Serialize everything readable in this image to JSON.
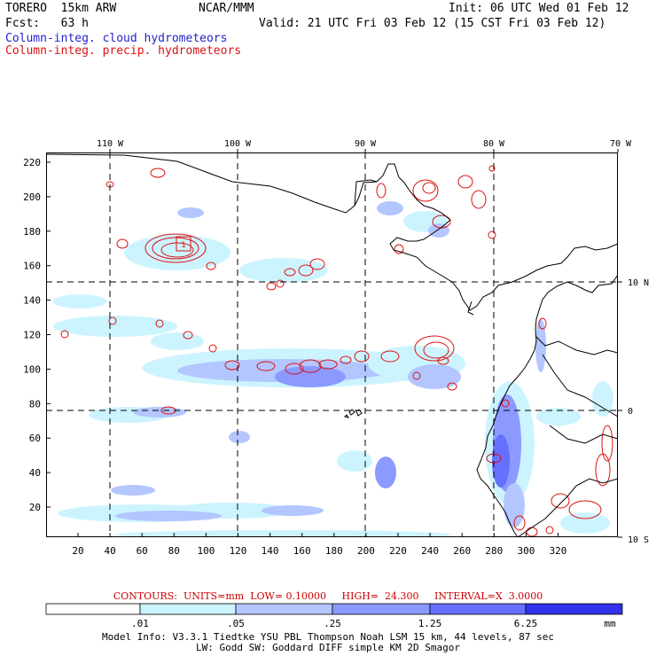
{
  "header": {
    "model": "TORERO  15km ARW",
    "org": "NCAR/MMM",
    "init": "Init: 06 UTC Wed 01 Feb 12",
    "fcst": "Fcst:   63 h",
    "valid": "Valid: 21 UTC Fri 03 Feb 12 (15 CST Fri 03 Feb 12)",
    "field1": "Column-integ. cloud hydrometeors",
    "field2": "Column-integ. precip. hydrometeors"
  },
  "map": {
    "top_lon_labels": [
      "110 W",
      "100 W",
      "90 W",
      "80 W",
      "70 W"
    ],
    "right_lat_labels": [
      "10 N",
      "0",
      "10 S"
    ],
    "x_ticks": [
      "20",
      "40",
      "60",
      "80",
      "100",
      "120",
      "140",
      "160",
      "180",
      "200",
      "220",
      "240",
      "260",
      "280",
      "300",
      "320"
    ],
    "y_ticks": [
      "20",
      "40",
      "60",
      "80",
      "100",
      "120",
      "140",
      "160",
      "180",
      "200",
      "220"
    ],
    "box_label": "1",
    "colors": {
      "cloud_light": "#ccf4ff",
      "cloud_mid": "#99b3ff",
      "cloud_dark": "#6666ff",
      "precip": "#dd1111",
      "coast": "#000000"
    }
  },
  "contour_info": {
    "label": "CONTOURS:",
    "units": "UNITS=mm",
    "low": "LOW= 0.10000",
    "high": "HIGH=  24.300",
    "interval": "INTERVAL=X  3.0000"
  },
  "legend": {
    "labels": [
      ".01",
      ".05",
      ".25",
      "1.25",
      "6.25"
    ],
    "unit": "mm",
    "colors": [
      "#ffffff",
      "#ccf4ff",
      "#b3c6ff",
      "#8c99ff",
      "#6670ff",
      "#3333ee"
    ]
  },
  "footer": {
    "line1": "Model Info: V3.3.1   Tiedtke YSU PBL  Thompson    Noah LSM  15 km,   44 levels,   87 sec",
    "line2": "LW: Godd SW: Goddard DIFF  simple KM  2D Smagor"
  }
}
